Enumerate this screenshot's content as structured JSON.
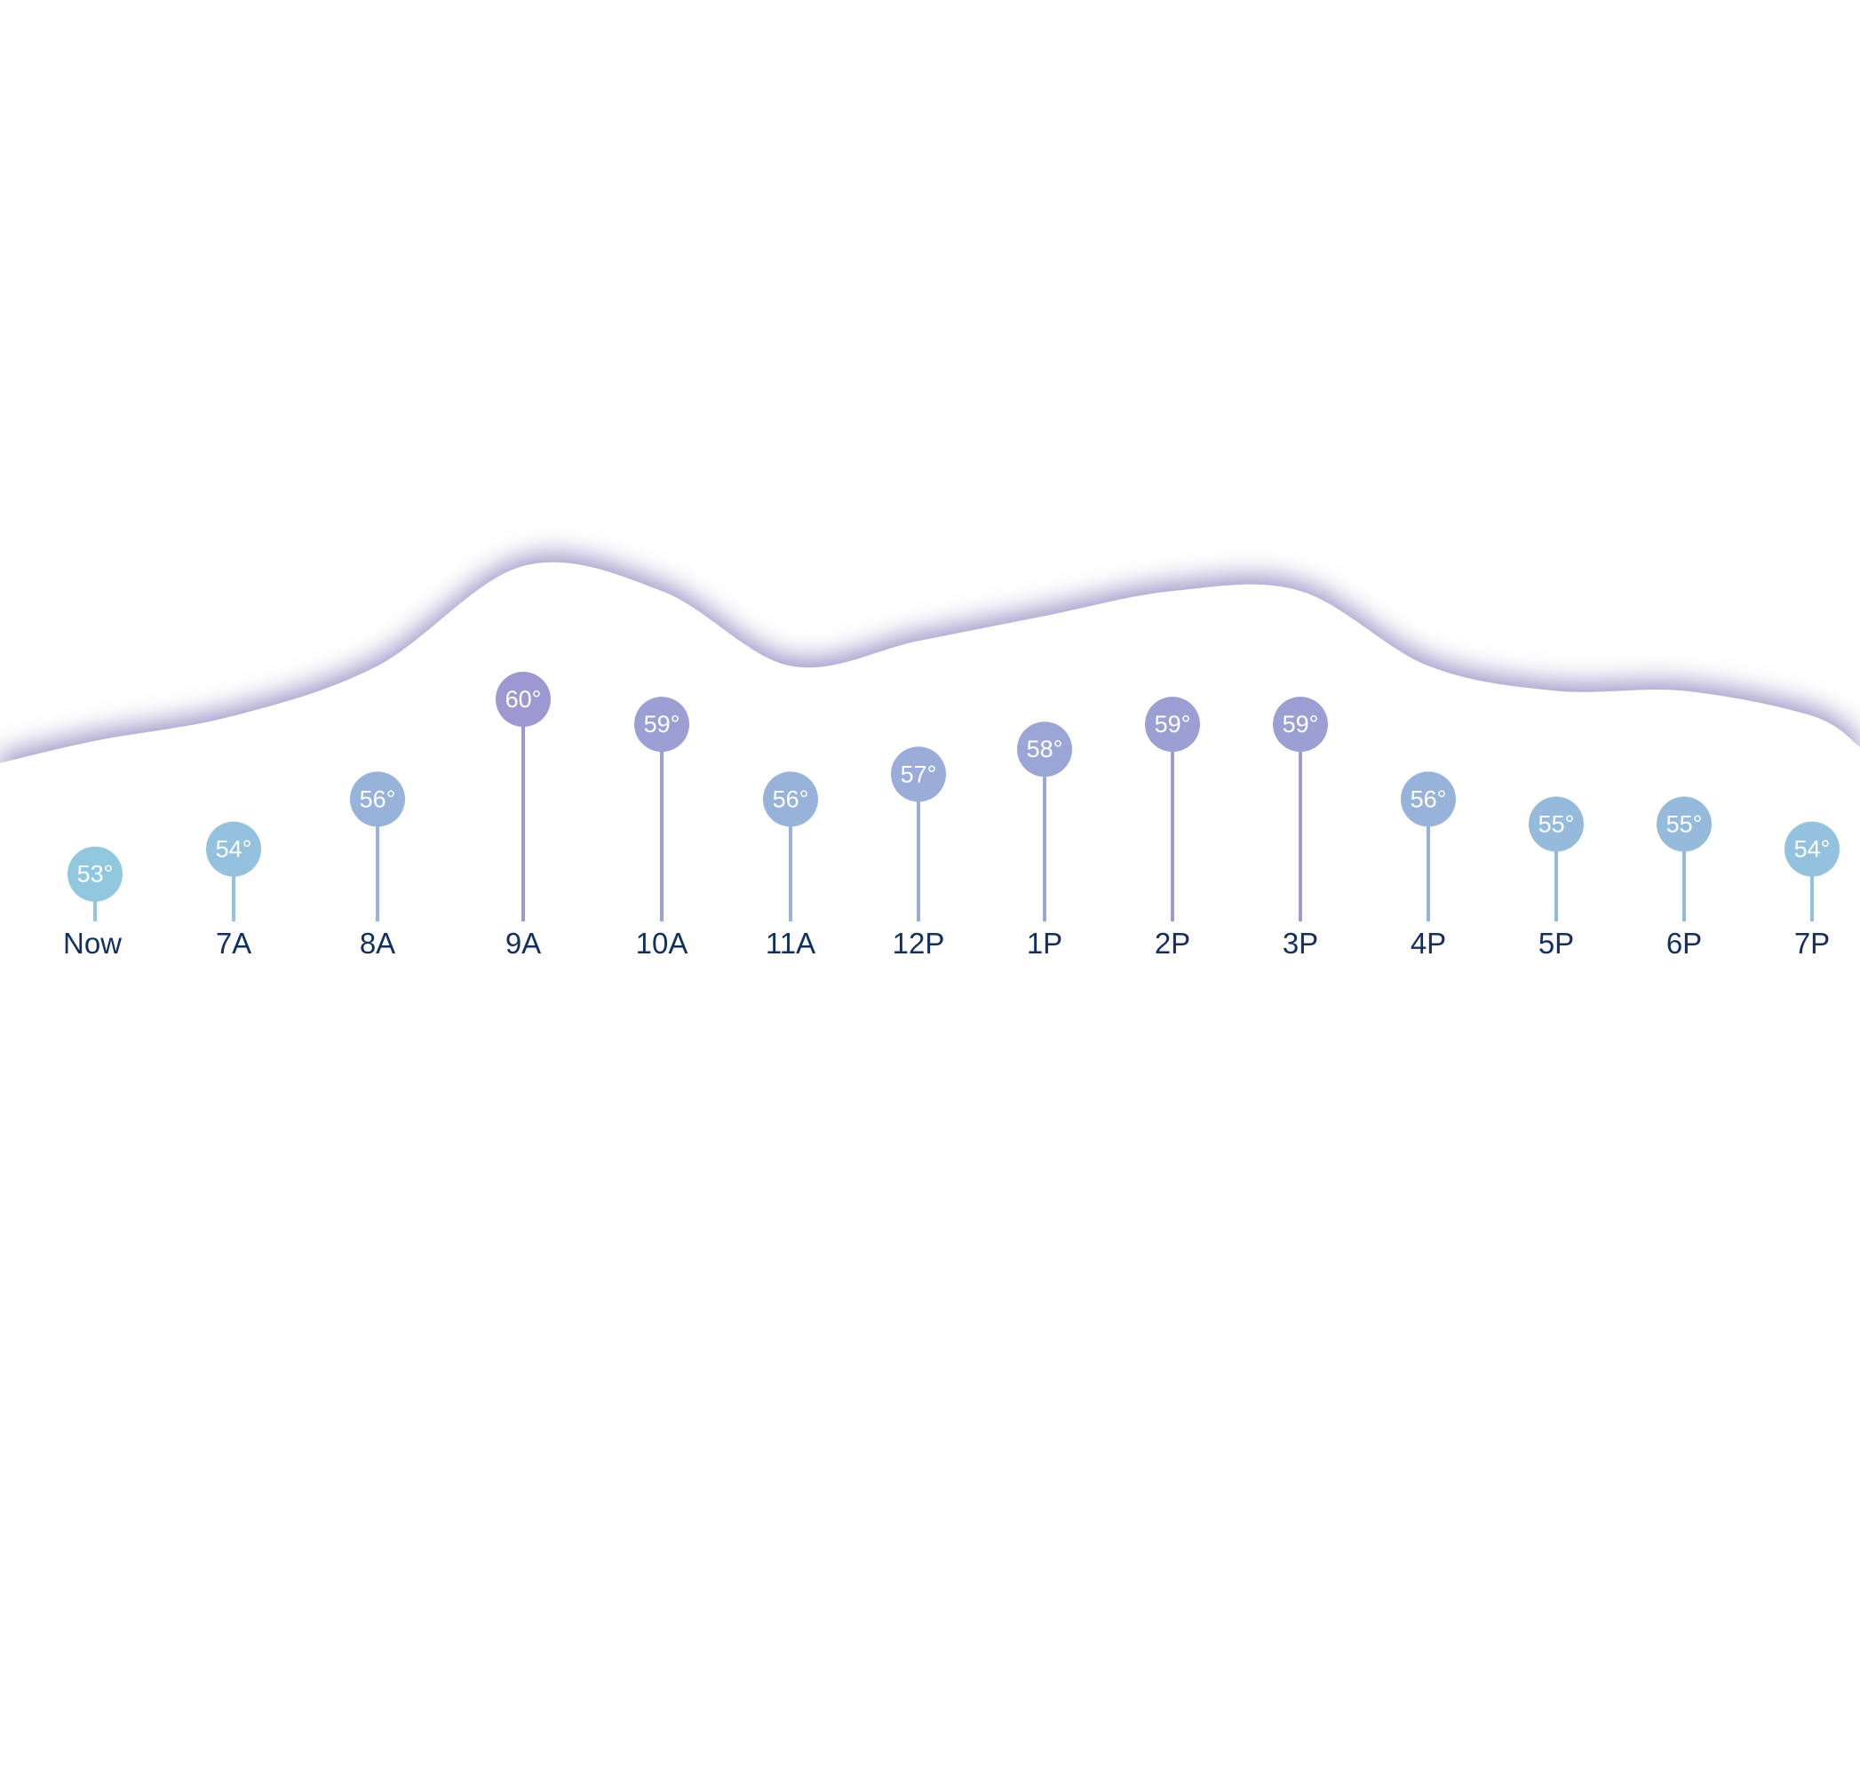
{
  "chart_data": {
    "type": "line",
    "categories": [
      "Now",
      "7A",
      "8A",
      "9A",
      "10A",
      "11A",
      "12P",
      "1P",
      "2P",
      "3P",
      "4P",
      "5P",
      "6P",
      "7P"
    ],
    "series": [
      {
        "values": [
          53,
          54,
          56,
          60,
          59,
          56,
          57,
          58,
          59,
          59,
          56,
          55,
          55,
          54
        ],
        "labels": [
          "53°",
          "54°",
          "56°",
          "60°",
          "59°",
          "56°",
          "57°",
          "58°",
          "59°",
          "59°",
          "56°",
          "55°",
          "55°",
          "54°"
        ]
      }
    ],
    "title": "",
    "xlabel": "",
    "ylabel": "",
    "grid": false,
    "colors": {
      "cool": "#92c8df",
      "warm": "#9e98d2",
      "band": "#ffffff",
      "band_shadow": "#8f88bf",
      "time_text": "#12305e",
      "temp_text": "#ffffff"
    }
  }
}
